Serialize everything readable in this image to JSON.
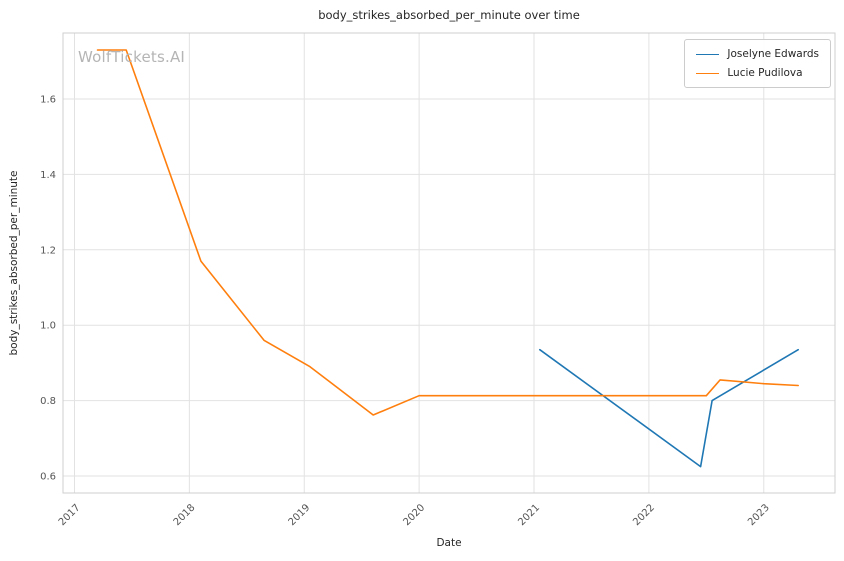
{
  "chart_data": {
    "type": "line",
    "title": "body_strikes_absorbed_per_minute over time",
    "xlabel": "Date",
    "ylabel": "body_strikes_absorbed_per_minute",
    "watermark": "WolfTickets.AI",
    "grid": true,
    "legend_position": "upper right",
    "x_ticks": [
      2017,
      2018,
      2019,
      2020,
      2021,
      2022,
      2023
    ],
    "y_ticks": [
      0.6,
      0.8,
      1.0,
      1.2,
      1.4,
      1.6
    ],
    "xlim": [
      2016.9,
      2023.62
    ],
    "ylim": [
      0.555,
      1.775
    ],
    "colors": {
      "grid": "#e2e2e2",
      "spine": "#cfcfcf",
      "tick_label": "#555555",
      "series_blue": "#1f77b4",
      "series_orange": "#ff7f0e"
    },
    "series": [
      {
        "name": "Joselyne Edwards",
        "color": "#1f77b4",
        "x": [
          2021.05,
          2022.45,
          2022.55,
          2023.3
        ],
        "y": [
          0.935,
          0.625,
          0.8,
          0.935
        ]
      },
      {
        "name": "Lucie Pudilova",
        "color": "#ff7f0e",
        "x": [
          2017.2,
          2017.45,
          2018.1,
          2018.65,
          2019.05,
          2019.6,
          2020.0,
          2021.0,
          2022.5,
          2022.62,
          2023.0,
          2023.3
        ],
        "y": [
          1.73,
          1.73,
          1.17,
          0.96,
          0.89,
          0.762,
          0.813,
          0.813,
          0.813,
          0.855,
          0.845,
          0.84
        ]
      }
    ]
  }
}
